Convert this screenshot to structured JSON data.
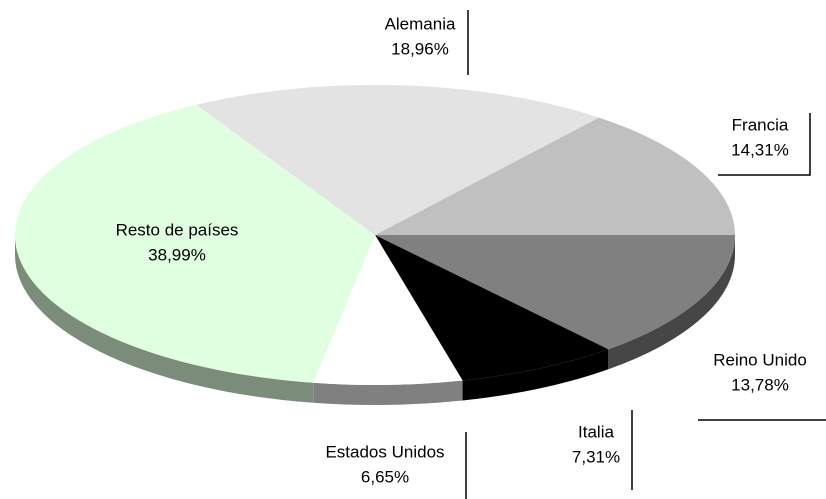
{
  "chart_data": {
    "type": "pie3d",
    "categories": [
      "Reino Unido",
      "Italia",
      "Estados Unidos",
      "Resto de países",
      "Alemania",
      "Francia"
    ],
    "values": [
      13.78,
      7.31,
      6.65,
      38.99,
      18.96,
      14.31
    ],
    "value_labels": [
      "13,78%",
      "7,31%",
      "6,65%",
      "38,99%",
      "18,96%",
      "14,31%"
    ],
    "colors": [
      "#808080",
      "#000000",
      "#ffffff",
      "#e0ffe0",
      "#e3e3e3",
      "#c0c0c0"
    ]
  }
}
